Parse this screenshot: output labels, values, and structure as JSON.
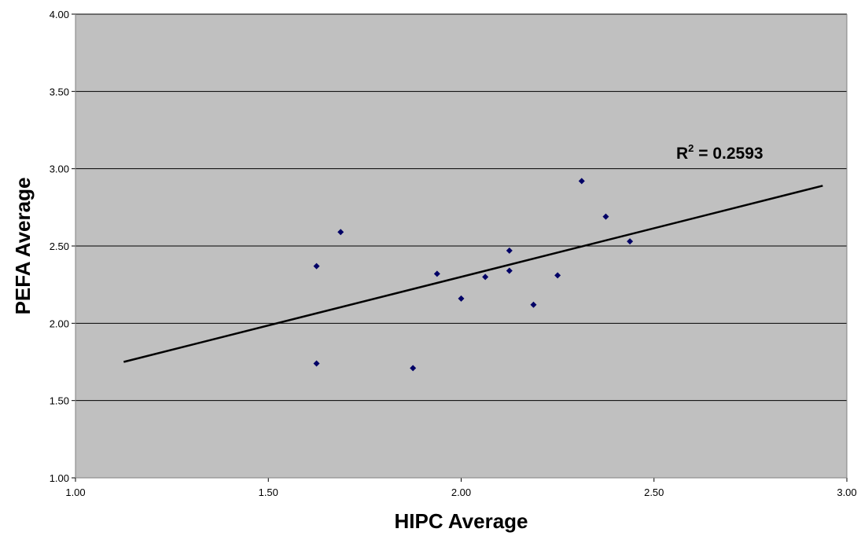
{
  "chart_data": {
    "type": "scatter",
    "xlabel": "HIPC Average",
    "ylabel": "PEFA Average",
    "xlim": [
      1.0,
      3.0
    ],
    "ylim": [
      1.0,
      4.0
    ],
    "x_ticks": [
      "1.00",
      "1.50",
      "2.00",
      "2.50",
      "3.00"
    ],
    "y_ticks": [
      "1.00",
      "1.50",
      "2.00",
      "2.50",
      "3.00",
      "3.50",
      "4.00"
    ],
    "grid": "horizontal",
    "points": [
      {
        "x": 1.625,
        "y": 2.37
      },
      {
        "x": 1.625,
        "y": 1.74
      },
      {
        "x": 1.6875,
        "y": 2.59
      },
      {
        "x": 1.875,
        "y": 1.71
      },
      {
        "x": 1.9375,
        "y": 2.32
      },
      {
        "x": 2.0,
        "y": 2.16
      },
      {
        "x": 2.0625,
        "y": 2.3
      },
      {
        "x": 2.125,
        "y": 2.47
      },
      {
        "x": 2.125,
        "y": 2.34
      },
      {
        "x": 2.1875,
        "y": 2.12
      },
      {
        "x": 2.25,
        "y": 2.31
      },
      {
        "x": 2.3125,
        "y": 2.92
      },
      {
        "x": 2.375,
        "y": 2.69
      },
      {
        "x": 2.4375,
        "y": 2.53
      }
    ],
    "trendline": {
      "type": "linear",
      "x": [
        1.125,
        2.9375
      ],
      "y": [
        1.75,
        2.89
      ]
    },
    "annotation": {
      "text_base": "R",
      "text_sup": "2",
      "text_rest": " = 0.2593"
    },
    "colors": {
      "plot_background": "#c0c0c0",
      "marker": "#000066",
      "gridline": "#000000",
      "trendline": "#000000"
    }
  }
}
